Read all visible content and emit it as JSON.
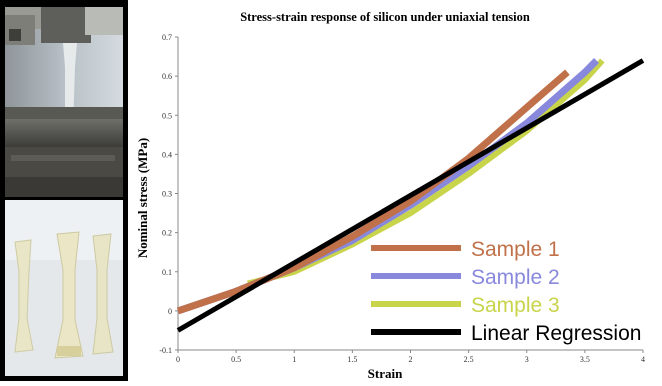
{
  "photos": {
    "top": "tensile-test-rig-photo",
    "bottom": "dogbone-specimens-photo"
  },
  "chart_data": {
    "type": "line",
    "title": "Stress-strain response of silicon under uniaxial tension",
    "xlabel": "Strain",
    "ylabel": "Nominal stress (MPa)",
    "xlim": [
      0,
      4
    ],
    "ylim": [
      -0.1,
      0.7
    ],
    "xticks": [
      "0",
      "0.5",
      "1",
      "1.5",
      "2",
      "2.5",
      "3",
      "3.5",
      "4"
    ],
    "yticks": [
      "-0.1",
      "0",
      "0.1",
      "0.2",
      "0.3",
      "0.4",
      "0.5",
      "0.6",
      "0.7"
    ],
    "grid": false,
    "legend_position": "bottom-right",
    "series": [
      {
        "name": "Sample 1",
        "color": "#c0714a",
        "x": [
          0,
          0.5,
          1.0,
          1.5,
          2.0,
          2.5,
          3.0,
          3.35
        ],
        "y": [
          0.0,
          0.05,
          0.11,
          0.19,
          0.28,
          0.39,
          0.52,
          0.61
        ]
      },
      {
        "name": "Sample 2",
        "color": "#8888dd",
        "x": [
          0,
          0.5,
          1.0,
          1.5,
          2.0,
          2.5,
          3.0,
          3.5,
          3.6
        ],
        "y": [
          0.0,
          0.05,
          0.11,
          0.18,
          0.27,
          0.37,
          0.48,
          0.61,
          0.64
        ]
      },
      {
        "name": "Sample 3",
        "color": "#c8d44a",
        "x": [
          0.6,
          1.0,
          1.5,
          2.0,
          2.5,
          3.0,
          3.5,
          3.65
        ],
        "y": [
          0.07,
          0.1,
          0.17,
          0.25,
          0.35,
          0.46,
          0.59,
          0.64
        ]
      },
      {
        "name": "Linear Regression",
        "color": "#000000",
        "x": [
          0,
          4
        ],
        "y": [
          -0.05,
          0.64
        ]
      }
    ]
  }
}
